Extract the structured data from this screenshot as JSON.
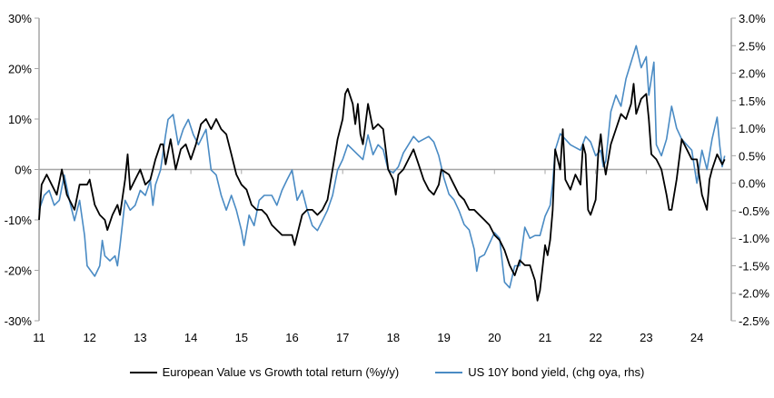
{
  "chart_data": {
    "type": "line",
    "title": "",
    "xlabel": "",
    "ylabel": "",
    "x_ticks": [
      "11",
      "12",
      "13",
      "14",
      "15",
      "16",
      "17",
      "18",
      "19",
      "20",
      "21",
      "22",
      "23",
      "24"
    ],
    "x_range": [
      2011,
      2024.55
    ],
    "y_left": {
      "range": [
        -30,
        30
      ],
      "ticks": [
        "30%",
        "20%",
        "10%",
        "0%",
        "-10%",
        "-20%",
        "-30%"
      ],
      "values": [
        30,
        20,
        10,
        0,
        -10,
        -20,
        -30
      ]
    },
    "y_right": {
      "range": [
        -2.5,
        3.0
      ],
      "ticks": [
        "3.0%",
        "2.5%",
        "2.0%",
        "1.5%",
        "1.0%",
        "0.5%",
        "0.0%",
        "-0.5%",
        "-1.0%",
        "-1.5%",
        "-2.0%",
        "-2.5%"
      ],
      "values": [
        3.0,
        2.5,
        2.0,
        1.5,
        1.0,
        0.5,
        0.0,
        -0.5,
        -1.0,
        -1.5,
        -2.0,
        -2.5
      ]
    },
    "grid": false,
    "zero_line": true,
    "legend_position": "bottom",
    "series": [
      {
        "name": "European Value vs Growth total return (%y/y)",
        "axis": "left",
        "color": "#000000",
        "x": [
          11.0,
          11.05,
          11.15,
          11.25,
          11.35,
          11.45,
          11.55,
          11.7,
          11.8,
          11.95,
          12.0,
          12.1,
          12.2,
          12.3,
          12.35,
          12.45,
          12.55,
          12.6,
          12.7,
          12.75,
          12.8,
          12.9,
          13.0,
          13.1,
          13.2,
          13.3,
          13.4,
          13.45,
          13.5,
          13.6,
          13.7,
          13.8,
          13.9,
          14.0,
          14.1,
          14.2,
          14.3,
          14.4,
          14.5,
          14.6,
          14.7,
          14.8,
          14.9,
          15.0,
          15.1,
          15.2,
          15.3,
          15.4,
          15.5,
          15.6,
          15.7,
          15.8,
          15.9,
          16.0,
          16.05,
          16.1,
          16.2,
          16.3,
          16.4,
          16.5,
          16.6,
          16.7,
          16.8,
          16.9,
          17.0,
          17.05,
          17.1,
          17.2,
          17.25,
          17.3,
          17.35,
          17.4,
          17.5,
          17.6,
          17.7,
          17.8,
          17.9,
          18.0,
          18.05,
          18.1,
          18.2,
          18.3,
          18.4,
          18.5,
          18.6,
          18.7,
          18.8,
          18.9,
          18.95,
          19.1,
          19.2,
          19.3,
          19.4,
          19.5,
          19.6,
          19.7,
          19.8,
          19.9,
          20.0,
          20.1,
          20.2,
          20.3,
          20.4,
          20.5,
          20.6,
          20.7,
          20.8,
          20.85,
          20.9,
          21.0,
          21.05,
          21.1,
          21.15,
          21.2,
          21.3,
          21.35,
          21.4,
          21.5,
          21.6,
          21.7,
          21.75,
          21.8,
          21.85,
          21.9,
          22.0,
          22.05,
          22.1,
          22.15,
          22.2,
          22.3,
          22.4,
          22.5,
          22.6,
          22.7,
          22.75,
          22.8,
          22.9,
          23.0,
          23.05,
          23.1,
          23.2,
          23.3,
          23.4,
          23.45,
          23.5,
          23.6,
          23.7,
          23.8,
          23.9,
          24.0,
          24.1,
          24.2,
          24.25,
          24.3,
          24.4,
          24.5,
          24.55
        ],
        "values": [
          -10,
          -3,
          -1,
          -3,
          -5,
          0,
          -5,
          -8,
          -3,
          -3,
          -2,
          -7,
          -9,
          -10,
          -12,
          -9,
          -7,
          -9,
          -2,
          3,
          -4,
          -2,
          0,
          -3,
          -2,
          2,
          5,
          5,
          1,
          6,
          0,
          4,
          5,
          2,
          5,
          9,
          10,
          8,
          10,
          8,
          7,
          3,
          -1,
          -3,
          -4,
          -7,
          -8,
          -8,
          -9,
          -11,
          -12,
          -13,
          -13,
          -13,
          -15,
          -13,
          -9,
          -8,
          -8,
          -9,
          -8,
          -6,
          0,
          6,
          10,
          15,
          16,
          13,
          9,
          13,
          7,
          5,
          13,
          8,
          9,
          8,
          0,
          -2,
          -5,
          -1,
          0,
          2,
          4,
          1,
          -2,
          -4,
          -5,
          -3,
          0,
          -1,
          -3,
          -5,
          -6,
          -8,
          -8,
          -9,
          -10,
          -11,
          -13,
          -14,
          -16,
          -19,
          -21,
          -18,
          -19,
          -19,
          -22,
          -26,
          -24,
          -15,
          -17,
          -14,
          -8,
          4,
          0,
          8,
          -2,
          -4,
          -1,
          -3,
          5,
          3,
          -8,
          -9,
          -6,
          3,
          7,
          2,
          -1,
          5,
          8,
          11,
          10,
          13,
          17,
          11,
          14,
          15,
          10,
          3,
          2,
          0,
          -5,
          -8,
          -8,
          -2,
          6,
          4,
          2,
          2,
          -5,
          -8,
          -2,
          0,
          3,
          1,
          2
        ]
      },
      {
        "name": "US 10Y bond yield, (chg oya, rhs)",
        "axis": "right",
        "color": "#4a8bc4",
        "x": [
          11.0,
          11.1,
          11.2,
          11.3,
          11.4,
          11.5,
          11.6,
          11.7,
          11.8,
          11.9,
          11.95,
          12.1,
          12.2,
          12.25,
          12.3,
          12.4,
          12.5,
          12.55,
          12.6,
          12.7,
          12.8,
          12.9,
          13.0,
          13.1,
          13.2,
          13.25,
          13.3,
          13.4,
          13.5,
          13.55,
          13.65,
          13.75,
          13.85,
          13.95,
          14.05,
          14.15,
          14.3,
          14.4,
          14.5,
          14.6,
          14.7,
          14.8,
          14.9,
          15.0,
          15.05,
          15.15,
          15.25,
          15.35,
          15.45,
          15.6,
          15.7,
          15.8,
          15.9,
          16.0,
          16.1,
          16.2,
          16.3,
          16.4,
          16.5,
          16.6,
          16.7,
          16.8,
          16.9,
          17.0,
          17.1,
          17.2,
          17.3,
          17.4,
          17.5,
          17.6,
          17.7,
          17.8,
          17.9,
          18.0,
          18.1,
          18.2,
          18.3,
          18.4,
          18.5,
          18.6,
          18.7,
          18.8,
          18.9,
          19.0,
          19.1,
          19.2,
          19.3,
          19.4,
          19.5,
          19.6,
          19.65,
          19.7,
          19.8,
          19.9,
          20.0,
          20.1,
          20.2,
          20.3,
          20.4,
          20.5,
          20.6,
          20.7,
          20.8,
          20.9,
          21.0,
          21.1,
          21.15,
          21.2,
          21.3,
          21.4,
          21.5,
          21.6,
          21.7,
          21.8,
          21.9,
          22.0,
          22.1,
          22.15,
          22.2,
          22.3,
          22.4,
          22.5,
          22.6,
          22.7,
          22.8,
          22.9,
          23.0,
          23.05,
          23.15,
          23.2,
          23.3,
          23.4,
          23.5,
          23.6,
          23.7,
          23.8,
          23.9,
          24.0,
          24.1,
          24.2,
          24.3,
          24.4,
          24.45,
          24.5,
          24.55
        ],
        "values": [
          -0.49,
          -0.22,
          -0.13,
          -0.4,
          -0.31,
          0.15,
          -0.31,
          -0.68,
          -0.31,
          -0.95,
          -1.5,
          -1.69,
          -1.5,
          -1.04,
          -1.32,
          -1.41,
          -1.32,
          -1.5,
          -1.13,
          -0.31,
          -0.49,
          -0.4,
          -0.13,
          -0.22,
          0.05,
          -0.4,
          -0.03,
          0.24,
          0.88,
          1.16,
          1.25,
          0.7,
          0.98,
          1.16,
          0.88,
          0.7,
          0.98,
          0.24,
          0.15,
          -0.22,
          -0.49,
          -0.22,
          -0.49,
          -0.86,
          -1.13,
          -0.58,
          -0.77,
          -0.31,
          -0.22,
          -0.22,
          -0.4,
          -0.13,
          0.06,
          0.24,
          -0.31,
          -0.13,
          -0.49,
          -0.77,
          -0.86,
          -0.68,
          -0.49,
          -0.22,
          0.24,
          0.43,
          0.7,
          0.61,
          0.52,
          0.43,
          0.88,
          0.52,
          0.7,
          0.61,
          0.24,
          0.19,
          0.3,
          0.55,
          0.7,
          0.85,
          0.75,
          0.8,
          0.85,
          0.75,
          0.5,
          0.1,
          -0.2,
          -0.3,
          -0.5,
          -0.75,
          -0.85,
          -1.2,
          -1.6,
          -1.35,
          -1.3,
          -1.1,
          -0.9,
          -1.0,
          -1.8,
          -1.9,
          -1.5,
          -1.5,
          -0.8,
          -1.0,
          -0.95,
          -0.95,
          -0.6,
          -0.4,
          0.0,
          0.6,
          0.9,
          0.8,
          0.7,
          0.65,
          0.6,
          0.85,
          0.75,
          0.5,
          0.6,
          0.3,
          0.4,
          1.3,
          1.6,
          1.4,
          1.9,
          2.2,
          2.5,
          2.1,
          2.3,
          1.6,
          2.2,
          0.7,
          0.5,
          0.8,
          1.4,
          1.0,
          0.8,
          0.7,
          0.6,
          0.0,
          0.6,
          0.25,
          0.8,
          1.2,
          0.7,
          0.3,
          0.5
        ]
      }
    ]
  }
}
